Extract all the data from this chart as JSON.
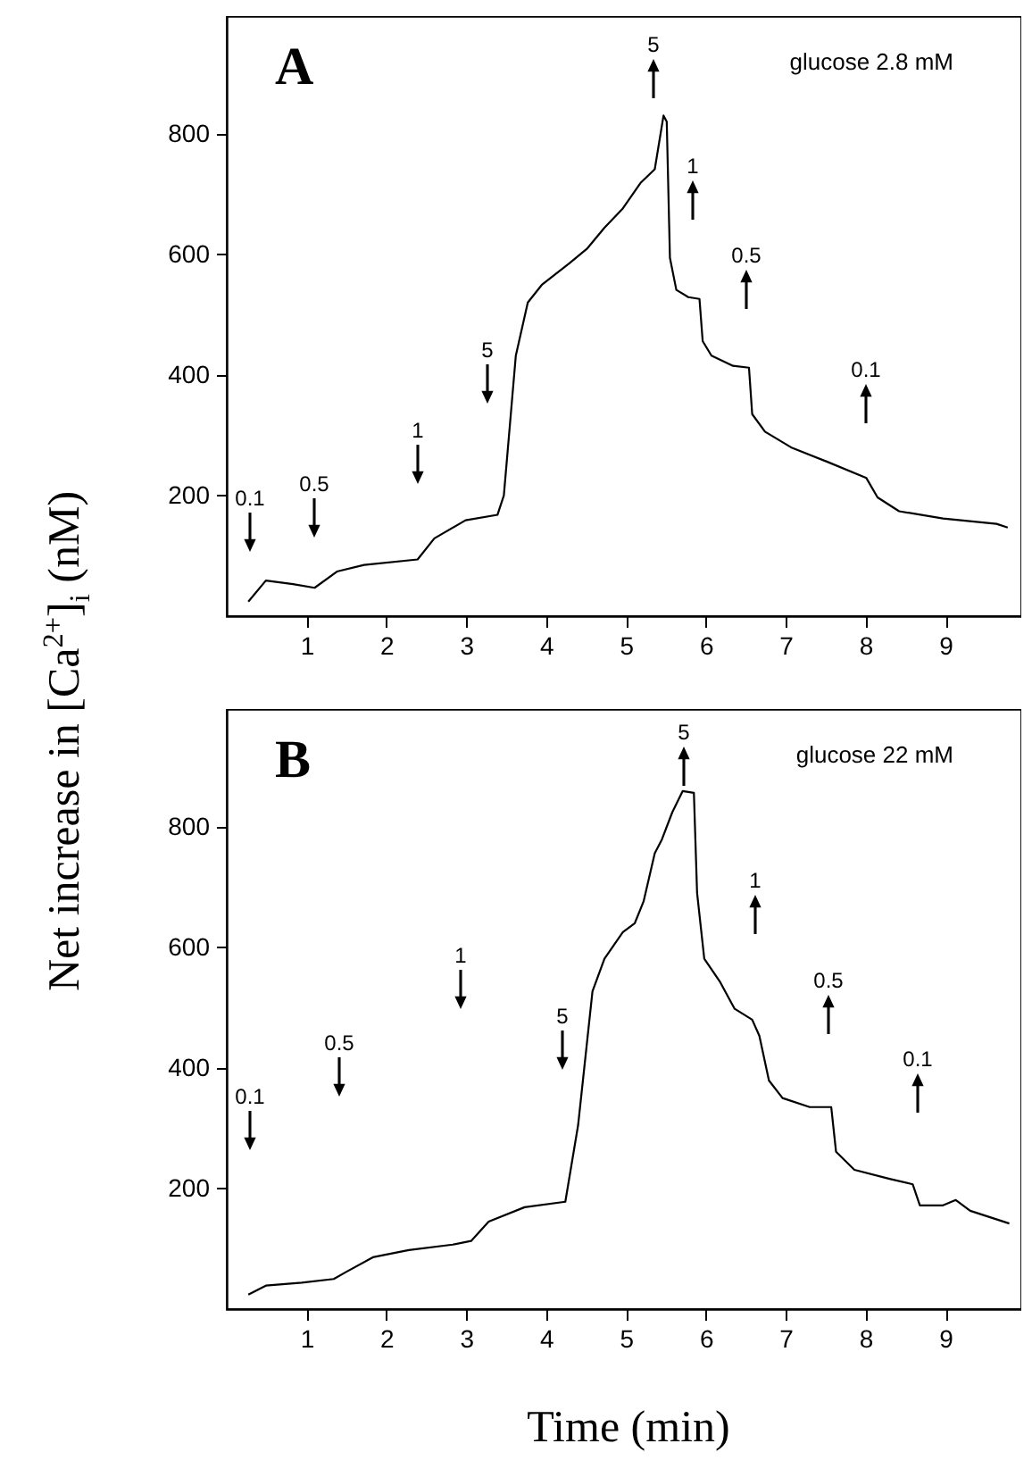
{
  "chart_data": [
    {
      "type": "line",
      "title": "A",
      "subtitle": "glucose 2.8 mM",
      "ylabel": "Net increase in [Ca$^{2+}$]$_{i}$ (nM)",
      "color": "#000000",
      "x": [
        0.27,
        0.49,
        0.83,
        1.1,
        1.38,
        1.72,
        2.39,
        2.6,
        2.99,
        3.39,
        3.47,
        3.62,
        3.77,
        3.95,
        4.29,
        4.51,
        4.73,
        4.96,
        5.18,
        5.36,
        5.47,
        5.51,
        5.55,
        5.63,
        5.78,
        5.92,
        5.96,
        6.07,
        6.34,
        6.54,
        6.58,
        6.74,
        7.08,
        7.52,
        8.01,
        8.15,
        8.42,
        8.97,
        9.64,
        9.78
      ],
      "values": [
        24,
        59,
        53,
        47,
        74,
        85,
        94,
        129,
        159,
        168,
        200,
        432,
        520,
        550,
        585,
        609,
        644,
        676,
        718,
        741,
        830,
        820,
        594,
        541,
        529,
        526,
        456,
        432,
        415,
        412,
        335,
        306,
        279,
        256,
        229,
        197,
        174,
        162,
        153,
        147
      ],
      "xlim": [
        0,
        9.95
      ],
      "xticks": [
        1,
        2,
        3,
        4,
        5,
        6,
        7,
        8,
        9
      ],
      "ylim": [
        0,
        995
      ],
      "yticks": [
        200,
        400,
        600,
        800
      ],
      "annotations": [
        "0.1",
        "0.5",
        "1",
        "5",
        "5",
        "1",
        "0.5",
        "0.1"
      ]
    },
    {
      "type": "line",
      "title": "B",
      "subtitle": "glucose 22 mM",
      "xlabel": "Time (min)",
      "color": "#000000",
      "x": [
        0.27,
        0.49,
        0.94,
        1.34,
        1.5,
        1.83,
        2.28,
        2.83,
        3.06,
        3.28,
        3.73,
        4.24,
        4.4,
        4.58,
        4.73,
        4.96,
        5.11,
        5.22,
        5.36,
        5.45,
        5.58,
        5.71,
        5.85,
        5.89,
        5.98,
        6.18,
        6.36,
        6.58,
        6.67,
        6.79,
        6.96,
        7.3,
        7.57,
        7.63,
        7.86,
        8.3,
        8.59,
        8.68,
        8.97,
        9.13,
        9.31,
        9.8
      ],
      "values": [
        24,
        39,
        44,
        50,
        62,
        86,
        98,
        107,
        113,
        145,
        169,
        178,
        305,
        527,
        581,
        625,
        640,
        676,
        756,
        779,
        824,
        859,
        856,
        690,
        581,
        542,
        498,
        480,
        453,
        379,
        350,
        335,
        335,
        261,
        231,
        216,
        207,
        172,
        172,
        181,
        163,
        142
      ],
      "xlim": [
        0,
        9.95
      ],
      "xticks": [
        1,
        2,
        3,
        4,
        5,
        6,
        7,
        8,
        9
      ],
      "ylim": [
        0,
        995
      ],
      "yticks": [
        200,
        400,
        600,
        800
      ],
      "annotations": [
        "0.1",
        "0.5",
        "1",
        "5",
        "5",
        "1",
        "0.5",
        "0.1"
      ]
    }
  ]
}
